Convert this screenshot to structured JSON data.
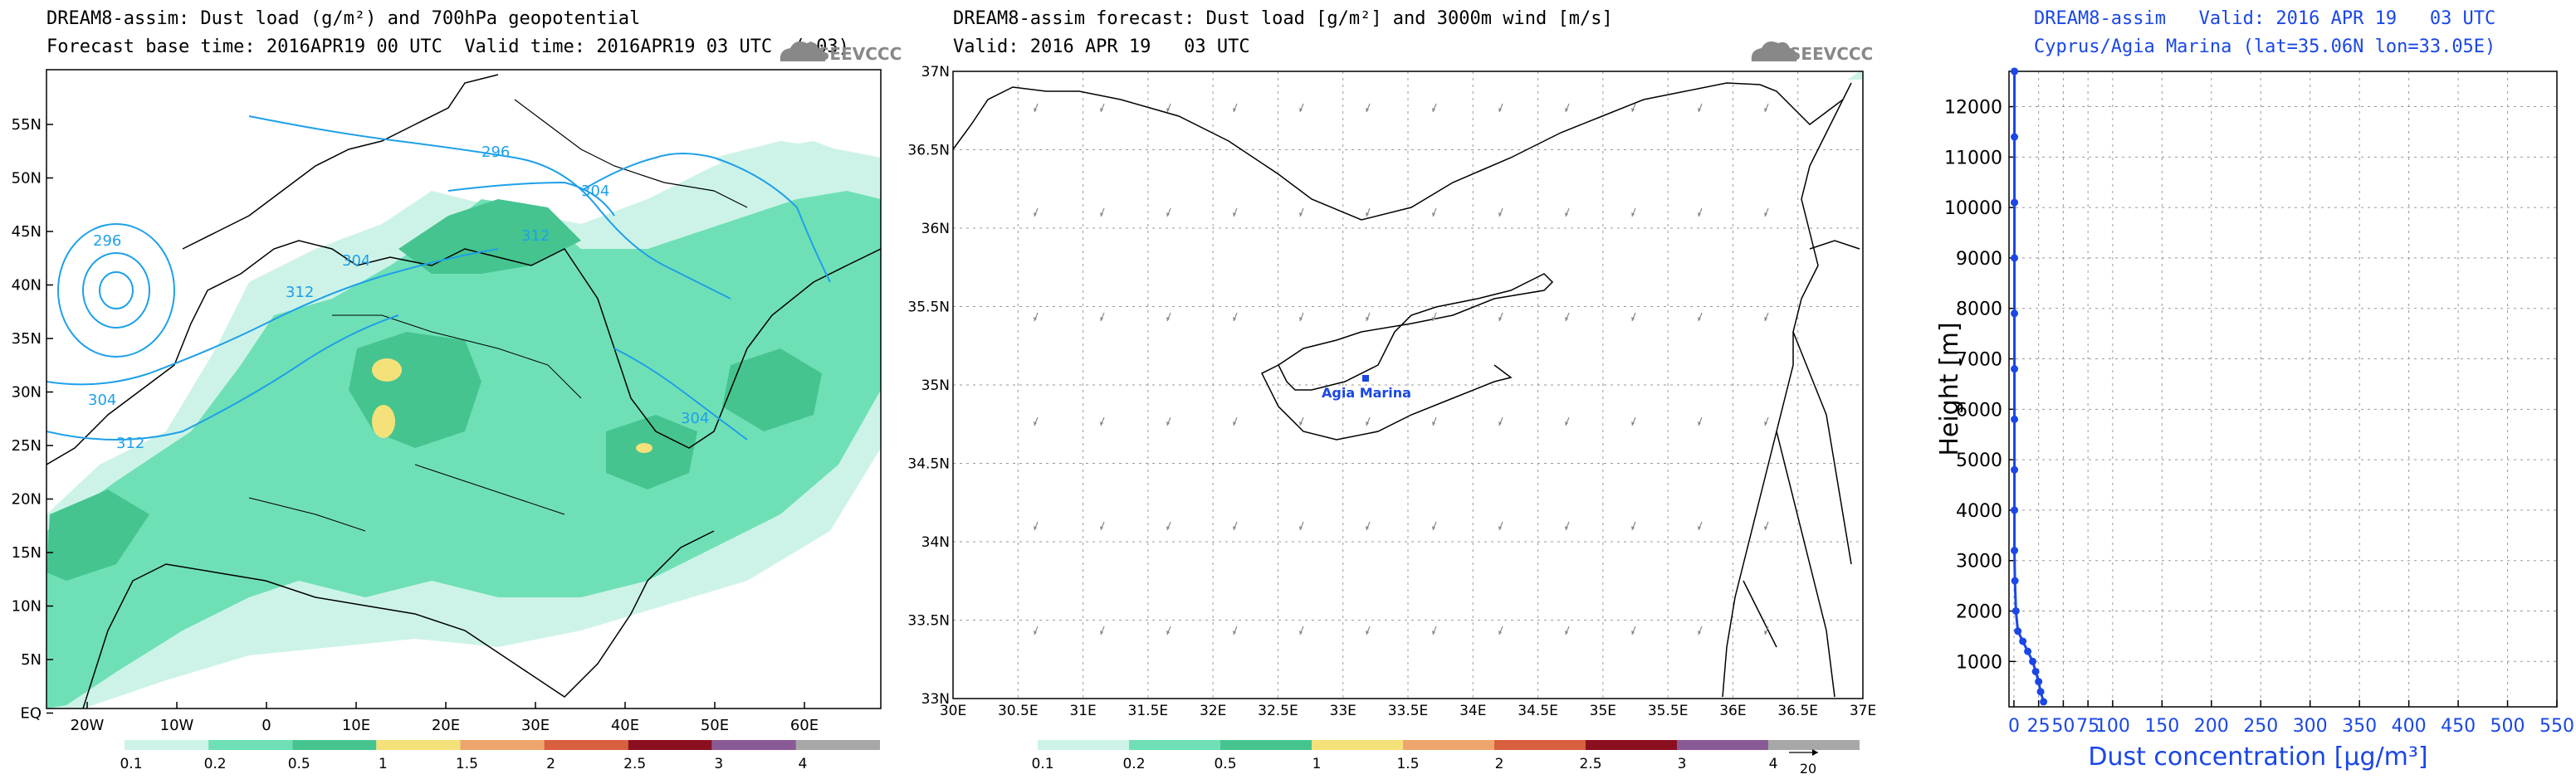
{
  "panel1": {
    "title_line1": "DREAM8-assim: Dust load (g/m²) and 700hPa geopotential",
    "title_line2": "Forecast base time: 2016APR19 00 UTC  Valid time: 2016APR19 03 UTC  (+03)",
    "logo": "SEEVCCC",
    "lat_labels": [
      "55N",
      "50N",
      "45N",
      "40N",
      "35N",
      "30N",
      "25N",
      "20N",
      "15N",
      "10N",
      "5N",
      "EQ"
    ],
    "lon_labels": [
      "20W",
      "10W",
      "0",
      "10E",
      "20E",
      "30E",
      "40E",
      "50E",
      "60E"
    ],
    "contour_labels": [
      "296",
      "304",
      "296",
      "304",
      "312",
      "304",
      "312",
      "312",
      "304"
    ],
    "colorbar_labels": [
      "0.1",
      "0.2",
      "0.5",
      "1",
      "1.5",
      "2",
      "2.5",
      "3",
      "4"
    ],
    "colorbar_colors": [
      "#cdf3e8",
      "#6fe0b6",
      "#45c48f",
      "#f5e17a",
      "#eea56d",
      "#d8603e",
      "#8a1020",
      "#8a5a96",
      "#a7a7a7"
    ]
  },
  "panel2": {
    "title_line1": "DREAM8-assim forecast: Dust load [g/m²] and 3000m wind [m/s]",
    "title_line2": "Valid: 2016 APR 19   03 UTC",
    "logo": "SEEVCCC",
    "lat_labels": [
      "37N",
      "36.5N",
      "36N",
      "35.5N",
      "35N",
      "34.5N",
      "34N",
      "33.5N",
      "33N"
    ],
    "lon_labels": [
      "30E",
      "30.5E",
      "31E",
      "31.5E",
      "32E",
      "32.5E",
      "33E",
      "33.5E",
      "34E",
      "34.5E",
      "35E",
      "35.5E",
      "36E",
      "36.5E",
      "37E"
    ],
    "station_label": "Agia  Marina",
    "colorbar_labels": [
      "0.1",
      "0.2",
      "0.5",
      "1",
      "1.5",
      "2",
      "2.5",
      "3",
      "4"
    ],
    "colorbar_colors": [
      "#cdf3e8",
      "#6fe0b6",
      "#45c48f",
      "#f5e17a",
      "#eea56d",
      "#d8603e",
      "#8a1020",
      "#8a5a96",
      "#a7a7a7"
    ],
    "wind_ref_label": "20"
  },
  "panel3": {
    "title_line1": "DREAM8-assim   Valid: 2016 APR 19   03 UTC",
    "title_line2": "Cyprus/Agia Marina (lat=35.06N lon=33.05E)",
    "chart_data": {
      "type": "line",
      "xlabel": "Dust concentration [μg/m³]",
      "ylabel": "Height [m]",
      "xlim": [
        -5,
        550
      ],
      "ylim": [
        100,
        12700
      ],
      "x_ticks": [
        0,
        25,
        50,
        75,
        100,
        150,
        200,
        250,
        300,
        350,
        400,
        450,
        500,
        550
      ],
      "y_ticks": [
        1000,
        2000,
        3000,
        4000,
        5000,
        6000,
        7000,
        8000,
        9000,
        10000,
        11000,
        12000
      ],
      "series": [
        {
          "x": [
            30,
            27,
            25,
            22,
            19,
            14,
            9,
            4,
            2,
            1,
            0.5,
            0.5,
            0.5,
            0.5,
            0.5,
            0.5,
            0.5,
            0.5,
            0.5,
            0.5,
            0.5
          ],
          "y": [
            200,
            400,
            600,
            800,
            1000,
            1200,
            1400,
            1600,
            2000,
            2600,
            3200,
            4000,
            4800,
            5800,
            6800,
            7900,
            9000,
            10100,
            11400,
            12700,
            12700
          ]
        }
      ]
    }
  }
}
